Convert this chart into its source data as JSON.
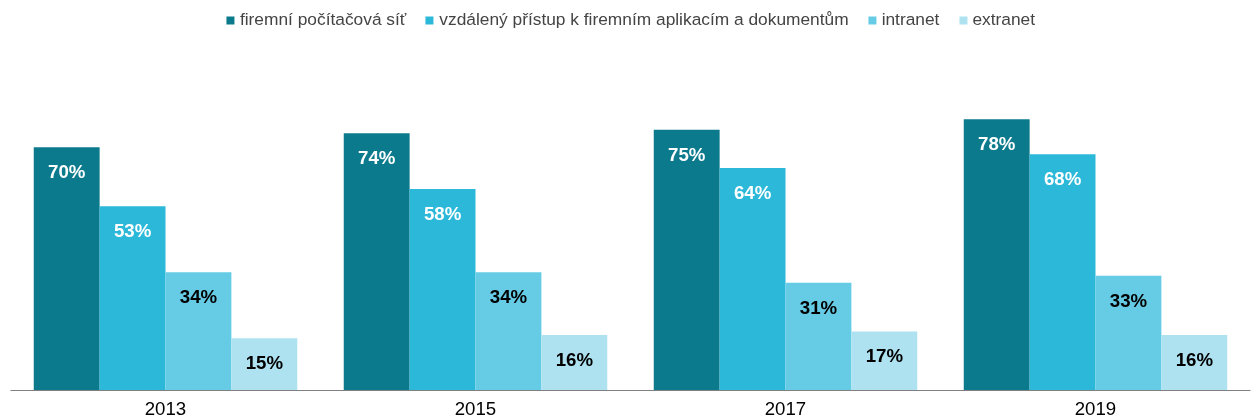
{
  "chart_data": {
    "type": "bar",
    "categories": [
      "2013",
      "2015",
      "2017",
      "2019"
    ],
    "series": [
      {
        "name": "firemní počítačová síť",
        "color": "#0b7a8c",
        "values": [
          70,
          74,
          75,
          78
        ],
        "value_labels": [
          "70%",
          "74%",
          "75%",
          "78%"
        ]
      },
      {
        "name": "vzdálený přístup k firemním aplikacím a dokumentům",
        "color": "#2bb8d9",
        "values": [
          53,
          58,
          64,
          68
        ],
        "value_labels": [
          "53%",
          "58%",
          "64%",
          "68%"
        ]
      },
      {
        "name": "intranet",
        "color": "#66cce6",
        "values": [
          34,
          34,
          31,
          33
        ],
        "value_labels": [
          "34%",
          "34%",
          "31%",
          "33%"
        ]
      },
      {
        "name": "extranet",
        "color": "#aee2f0",
        "values": [
          15,
          16,
          17,
          16
        ],
        "value_labels": [
          "15%",
          "16%",
          "17%",
          "16%"
        ]
      }
    ],
    "legend": "top",
    "tick_labels": "x"
  }
}
